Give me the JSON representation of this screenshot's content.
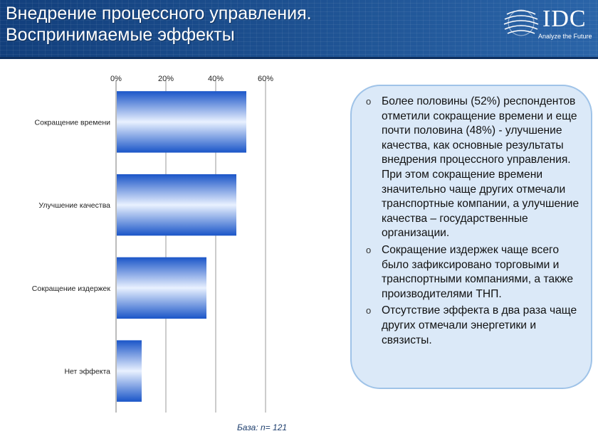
{
  "header": {
    "title_line1": "Внедрение процессного управления.",
    "title_line2": "Воспринимаемые эффекты",
    "logo_text": "IDC",
    "logo_tagline": "Analyze the Future"
  },
  "chart_data": {
    "type": "bar",
    "orientation": "horizontal",
    "categories": [
      "Сокращение времени",
      "Улучшение качества",
      "Сокращение издержек",
      "Нет эффекта"
    ],
    "values": [
      52,
      48,
      36,
      10
    ],
    "unit": "%",
    "xlim": [
      0,
      60
    ],
    "ticks": [
      "0%",
      "20%",
      "40%",
      "60%"
    ],
    "axis_position": "top",
    "grid": true,
    "bar_color": "#1f5fd0",
    "title": "",
    "xlabel": "",
    "ylabel": ""
  },
  "notes": {
    "bullet_glyph": "o",
    "items": [
      "Более половины (52%) респондентов отметили сокращение времени и еще почти половина (48%)  - улучшение качества, как основные результаты внедрения процессного управления. При этом сокращение времени значительно чаще других отмечали транспортные компании, а улучшение качества – государственные организации.",
      "Сокращение издержек чаще всего было зафиксировано торговыми и транспортными компаниями, а также производителями ТНП.",
      "Отсутствие эффекта в два раза чаще других отмечали энергетики и связисты."
    ]
  },
  "footer": {
    "base_label": "База: n= 121"
  }
}
